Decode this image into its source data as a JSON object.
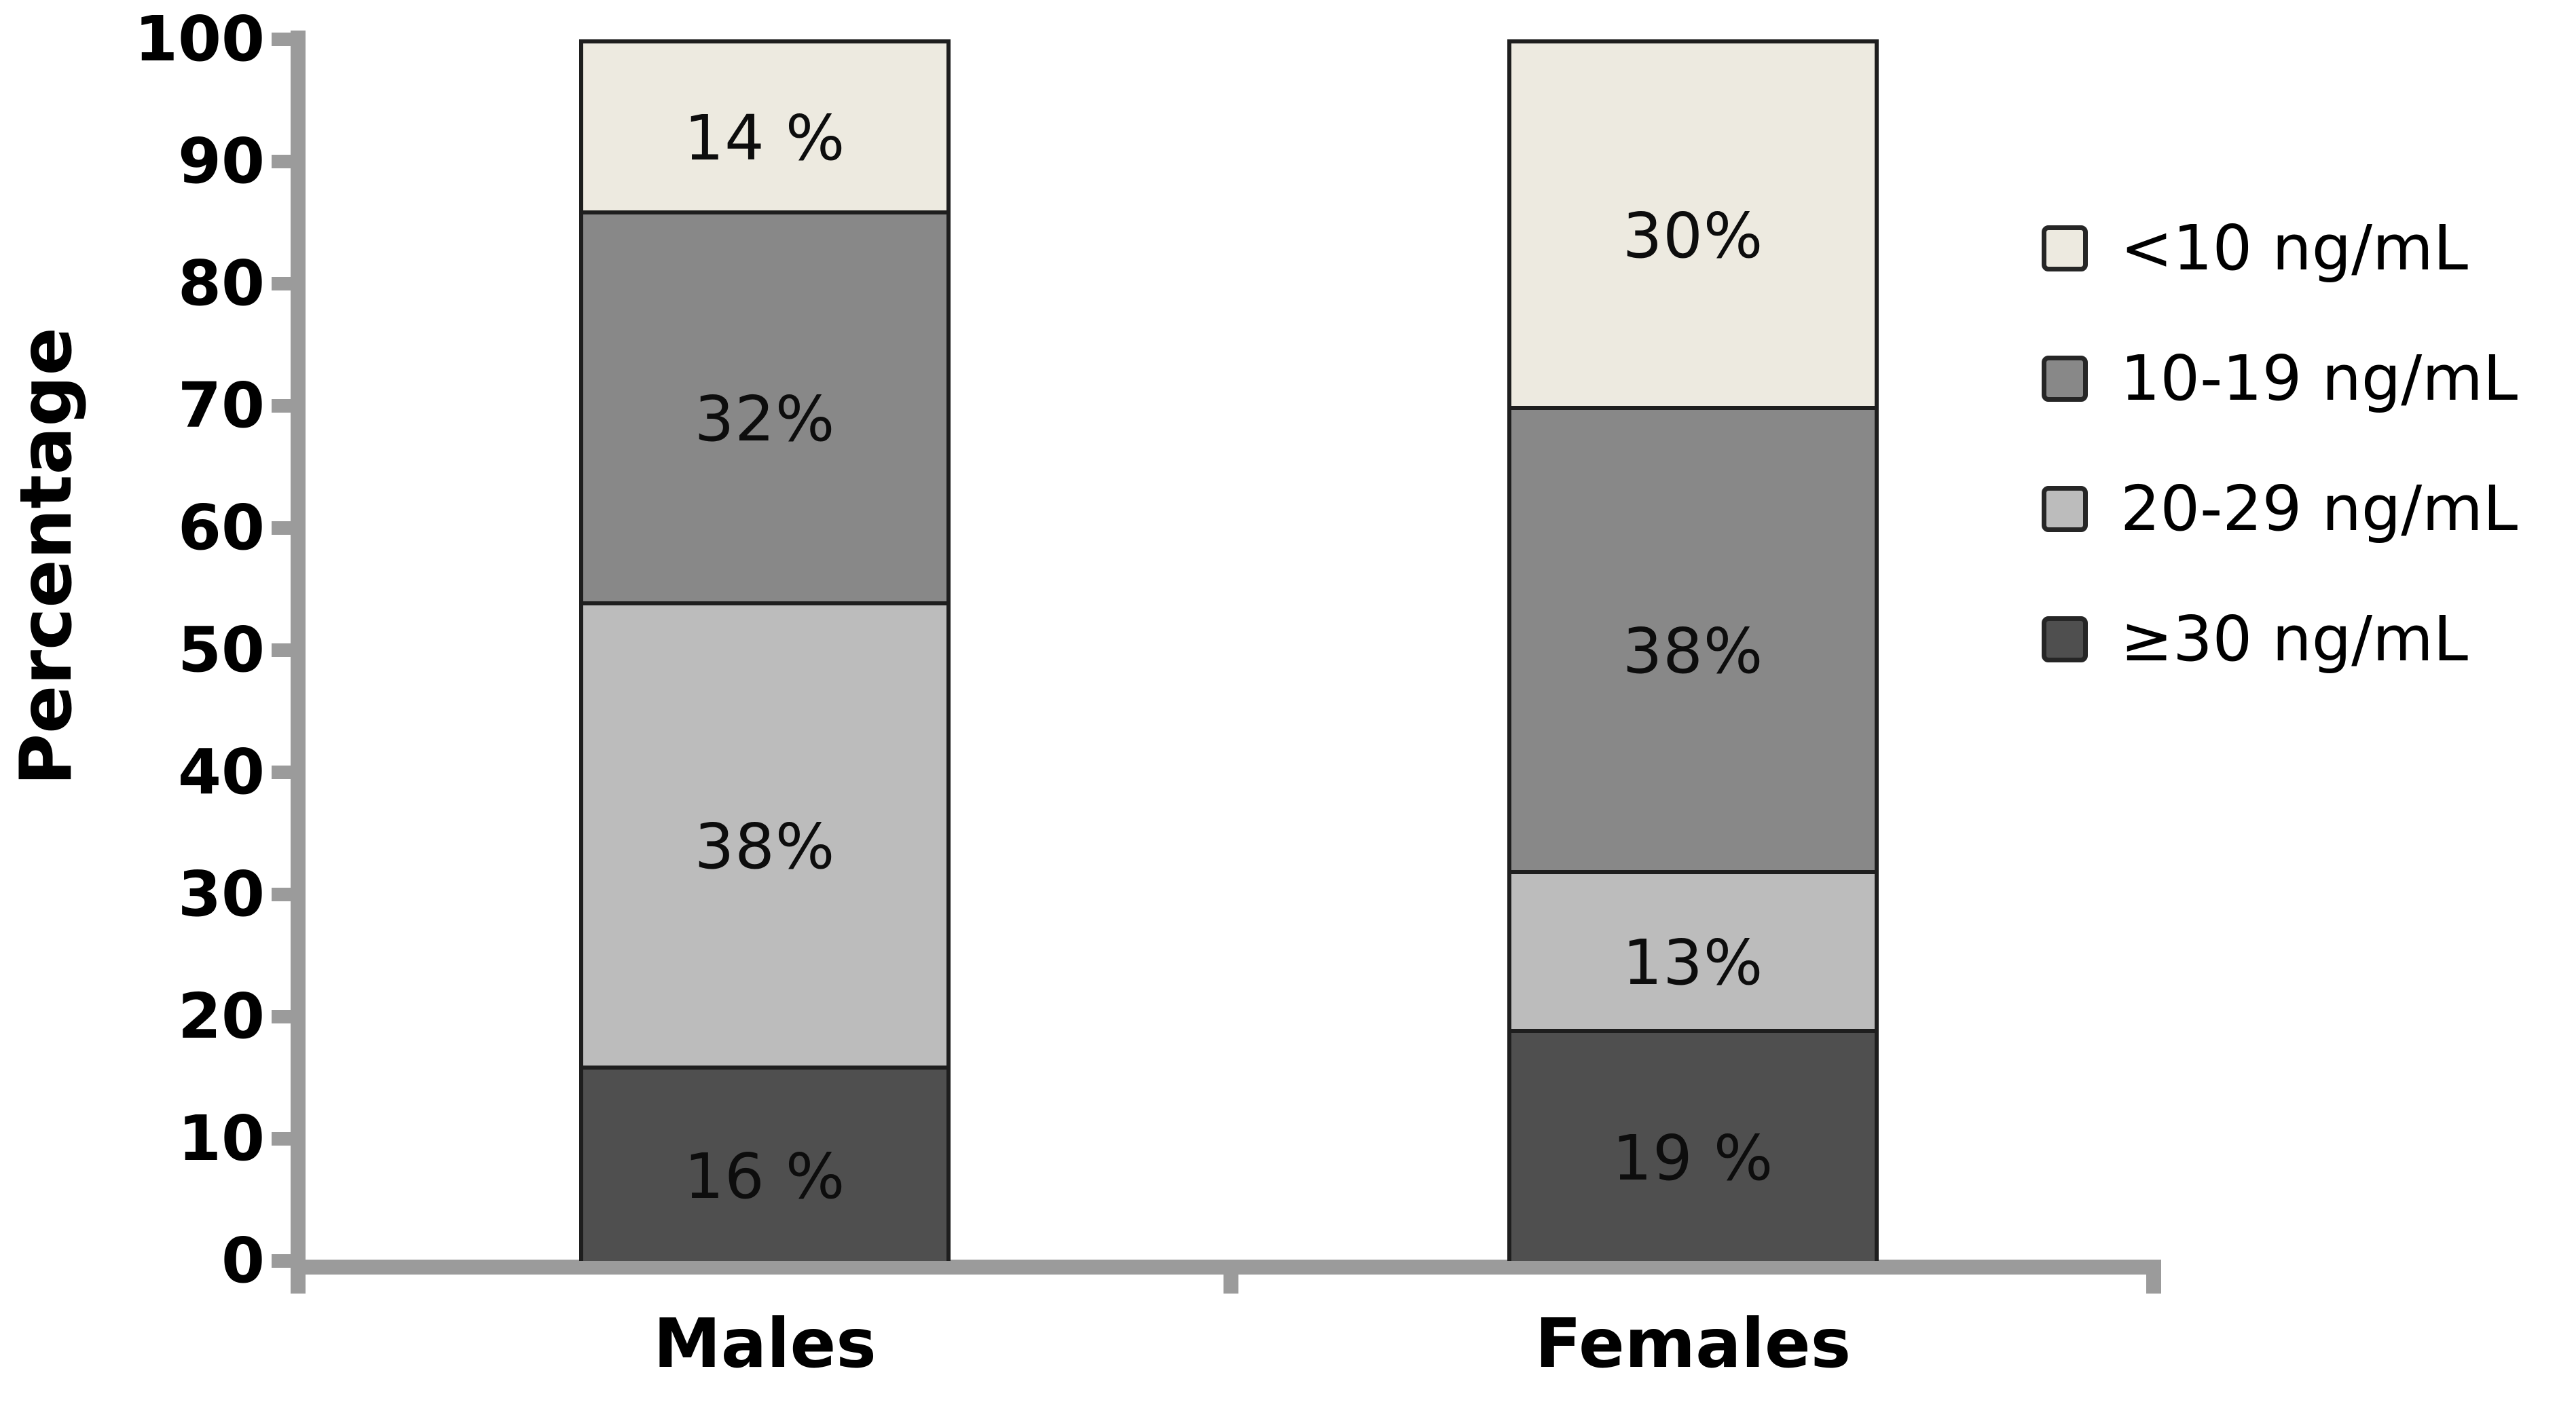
{
  "chart_data": {
    "type": "bar",
    "stacked": true,
    "orientation": "vertical",
    "categories": [
      "Males",
      "Females"
    ],
    "series": [
      {
        "name": "<10 ng/mL",
        "values": [
          14,
          30
        ],
        "value_labels": [
          "14 %",
          "30%"
        ],
        "color": "#edeae0"
      },
      {
        "name": "10-19 ng/mL",
        "values": [
          32,
          38
        ],
        "value_labels": [
          "32%",
          "38%"
        ],
        "color": "#888888"
      },
      {
        "name": "20-29 ng/mL",
        "values": [
          38,
          13
        ],
        "value_labels": [
          "38%",
          "13%"
        ],
        "color": "#bcbcbc"
      },
      {
        "name": "≥30 ng/mL",
        "values": [
          16,
          19
        ],
        "value_labels": [
          "16 %",
          "19 %"
        ],
        "color": "#4f4f4f"
      }
    ],
    "stack_order_bottom_to_top": [
      "≥30 ng/mL",
      "20-29 ng/mL",
      "10-19 ng/mL",
      "<10 ng/mL"
    ],
    "title": "",
    "xlabel": "",
    "ylabel": "Percentage",
    "ylim": [
      0,
      100
    ],
    "yticks": [
      0,
      10,
      20,
      30,
      40,
      50,
      60,
      70,
      80,
      90,
      100
    ],
    "grid": false,
    "legend_position": "right",
    "colors": {
      "axis": "#9b9b9b",
      "segment_border": "#1e1e1e",
      "text": "#000000",
      "background": "#ffffff"
    }
  }
}
